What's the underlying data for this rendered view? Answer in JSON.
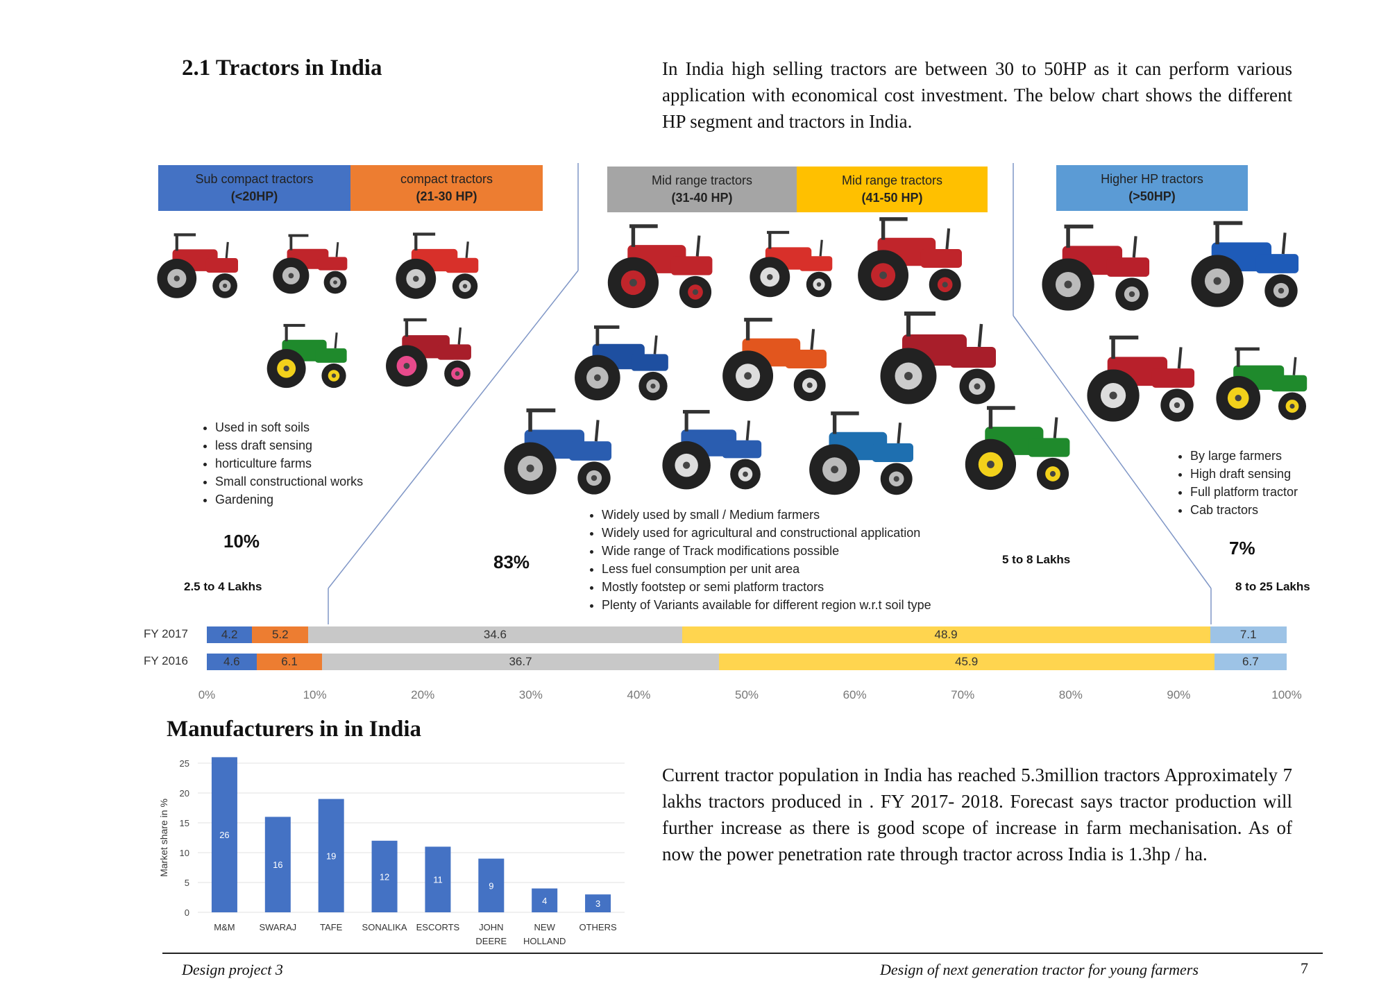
{
  "section_title": "2.1 Tractors in India",
  "intro_text": "In India high selling tractors are between 30 to 50HP as it can perform various application  with economical cost investment. The below chart shows the different HP segment and tractors in India.",
  "segments": [
    {
      "name": "Sub compact tractors",
      "range": "(<20HP)",
      "color": "#4472C4"
    },
    {
      "name": "compact tractors",
      "range": "(21-30 HP)",
      "color": "#ED7D31"
    },
    {
      "name": "Mid range tractors",
      "range": "(31-40 HP)",
      "color": "#A5A5A5"
    },
    {
      "name": "Mid range tractors",
      "range": "(41-50 HP)",
      "color": "#FFC000"
    },
    {
      "name": "Higher HP tractors",
      "range": "(>50HP)",
      "color": "#5B9BD5"
    }
  ],
  "left_group": {
    "bullets": [
      "Used in soft soils",
      "less draft sensing",
      "horticulture farms",
      "Small constructional works",
      "Gardening"
    ],
    "share": "10%",
    "price": "2.5 to 4 Lakhs"
  },
  "mid_group": {
    "bullets": [
      "Widely used by  small /  Medium farmers",
      "Widely used for agricultural and constructional application",
      "Wide range of Track modifications possible",
      "Less fuel consumption per unit area",
      "Mostly footstep or semi platform tractors",
      "Plenty of Variants available for different region w.r.t soil type"
    ],
    "share": "83%",
    "price": "5 to 8 Lakhs"
  },
  "right_group": {
    "bullets": [
      "By large farmers",
      "High draft sensing",
      "Full platform tractor",
      "Cab tractors"
    ],
    "share": "7%",
    "price": "8 to 25 Lakhs"
  },
  "chart_data": [
    {
      "type": "bar",
      "orientation": "horizontal-stacked-100",
      "categories": [
        "FY 2017",
        "FY 2016"
      ],
      "series": [
        {
          "values": [
            4.2,
            4.6
          ],
          "color": "#4472C4"
        },
        {
          "values": [
            5.2,
            6.1
          ],
          "color": "#ED7D31"
        },
        {
          "values": [
            34.6,
            36.7
          ],
          "color": "#C8C8C8"
        },
        {
          "values": [
            48.9,
            45.9
          ],
          "color": "#FFD54F"
        },
        {
          "values": [
            7.1,
            6.7
          ],
          "color": "#9DC3E6"
        }
      ],
      "x_ticks": [
        "0%",
        "10%",
        "20%",
        "30%",
        "40%",
        "50%",
        "60%",
        "70%",
        "80%",
        "90%",
        "100%"
      ],
      "xlim": [
        0,
        100
      ],
      "grid": false
    },
    {
      "type": "bar",
      "title": "Manufacturers in  in India",
      "categories": [
        "M&M",
        "SWARAJ",
        "TAFE",
        "SONALIKA",
        "ESCORTS",
        "JOHN DEERE",
        "NEW HOLLAND",
        "OTHERS"
      ],
      "values": [
        26,
        16,
        19,
        12,
        11,
        9,
        4,
        3
      ],
      "ylabel": "Market share in %",
      "y_ticks": [
        "0",
        "5",
        "10",
        "15",
        "20",
        "25"
      ],
      "ylim": [
        0,
        25
      ],
      "grid": true,
      "color": "#4472C4"
    }
  ],
  "population_text": "Current tractor population in India has reached 5.3million tractors Approximately 7 lakhs tractors produced in .  FY 2017- 2018. Forecast says tractor production will further increase as there is good scope of increase in farm mechanisation. As of now the power penetration rate through tractor across India is 1.3hp / ha.",
  "footer": {
    "left": "Design project 3",
    "right": "Design of next generation tractor for young farmers",
    "page": "7"
  },
  "tractor_images": [
    "tractor-icon",
    "tractor-icon",
    "tractor-icon",
    "tractor-icon",
    "tractor-icon",
    "tractor-icon",
    "tractor-icon",
    "tractor-icon",
    "tractor-icon",
    "tractor-icon",
    "tractor-icon",
    "tractor-icon",
    "tractor-icon",
    "tractor-icon",
    "tractor-icon",
    "tractor-icon",
    "tractor-icon",
    "tractor-icon",
    "tractor-icon"
  ]
}
